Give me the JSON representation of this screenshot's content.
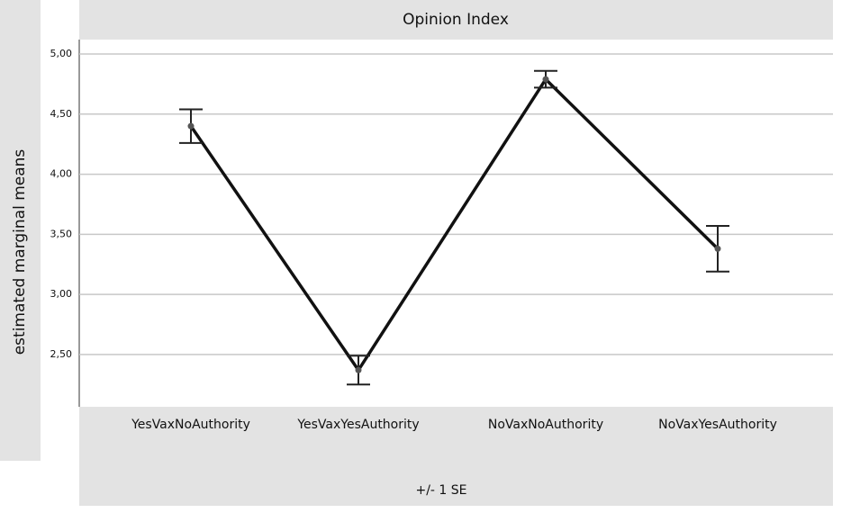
{
  "chart_data": {
    "type": "line",
    "title": "Opinion Index",
    "y_label": "estimated marginal means",
    "x_label": "+/- 1 SE",
    "categories": [
      "YesVaxNoAuthority",
      "YesVaxYesAuthority",
      "NoVaxNoAuthority",
      "NoVaxYesAuthority"
    ],
    "values": [
      4.4,
      2.37,
      4.79,
      3.38
    ],
    "errors": [
      0.14,
      0.12,
      0.07,
      0.19
    ],
    "color": "#111111",
    "ylim": [
      2.08,
      5.12
    ],
    "yticks": [
      {
        "value": 2.5,
        "label": "2,50"
      },
      {
        "value": 3,
        "label": "3,00"
      },
      {
        "value": 3.5,
        "label": "3,50"
      },
      {
        "value": 4,
        "label": "4,00"
      },
      {
        "value": 4.5,
        "label": "4,50"
      },
      {
        "value": 5,
        "label": "5,00"
      }
    ],
    "grid": true
  }
}
